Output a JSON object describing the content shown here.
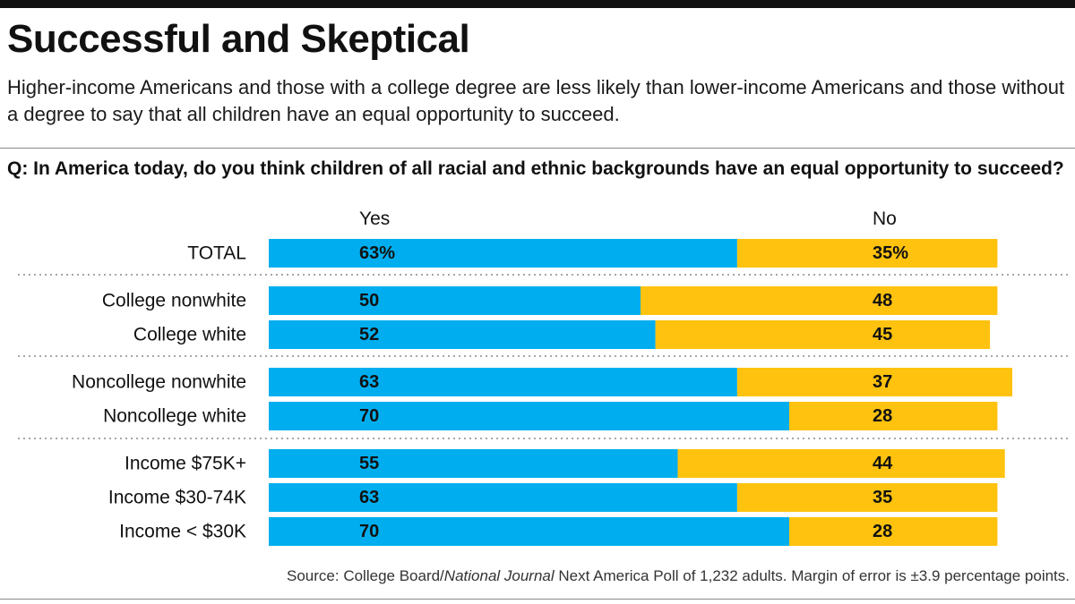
{
  "title": "Successful and Skeptical",
  "subtitle": "Higher-income Americans and those with a college degree are less likely than lower-income Americans and those without a degree to say that all children have an equal opportunity to succeed.",
  "question": "Q: In America today, do you think children of all racial and ethnic backgrounds have an equal opportunity to succeed?",
  "source": {
    "prefix": "Source: College Board/",
    "italic": "National Journal",
    "suffix": " Next America Poll of 1,232 adults. Margin of error is ±3.9 percentage points."
  },
  "colors": {
    "yes": "#00aeef",
    "no": "#ffc20e",
    "text": "#111111",
    "dotted_rule": "#8a8a8a"
  },
  "chart_data": {
    "type": "bar",
    "orientation": "horizontal",
    "stacked": true,
    "unit": "%",
    "categories": [
      "TOTAL",
      "College nonwhite",
      "College white",
      "Noncollege nonwhite",
      "Noncollege white",
      "Income $75K+",
      "Income $30-74K",
      "Income < $30K"
    ],
    "groups": [
      [
        "TOTAL"
      ],
      [
        "College nonwhite",
        "College white"
      ],
      [
        "Noncollege nonwhite",
        "Noncollege white"
      ],
      [
        "Income $75K+",
        "Income $30-74K",
        "Income < $30K"
      ]
    ],
    "series": [
      {
        "name": "Yes",
        "values": [
          63,
          50,
          52,
          63,
          70,
          55,
          63,
          70
        ],
        "labels": [
          "63%",
          "50",
          "52",
          "63",
          "70",
          "55",
          "63",
          "70"
        ]
      },
      {
        "name": "No",
        "values": [
          35,
          48,
          45,
          37,
          28,
          44,
          35,
          28
        ],
        "labels": [
          "35%",
          "48",
          "45",
          "37",
          "28",
          "44",
          "35",
          "28"
        ]
      }
    ],
    "xlim": [
      0,
      100
    ],
    "legend": "column headers above bars",
    "grid": false
  }
}
